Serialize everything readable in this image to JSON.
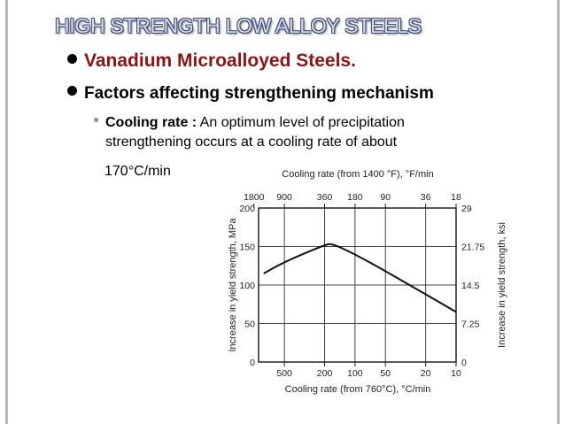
{
  "slide": {
    "title": "HIGH STRENGTH LOW ALLOY STEELS",
    "bullet1": "Vanadium Microalloyed Steels.",
    "bullet2": "Factors affecting strengthening mechanism",
    "sub_label": "Cooling rate :",
    "sub_text_line1": "An optimum level of precipitation",
    "sub_text_line2": "strengthening occurs at a cooling rate of about",
    "sub_text_line3": "170°C/min"
  },
  "chart_data": {
    "type": "line",
    "top_axis_label": "Cooling rate (from 1400 °F), °F/min",
    "bottom_axis_label": "Cooling rate (from 760°C), °C/min",
    "left_axis_label": "Increase in yield strength, MPa",
    "right_axis_label": "Increase in yield strength, ksi",
    "top_ticks": [
      "1800",
      "900",
      "360",
      "180",
      "90",
      "36",
      "18"
    ],
    "bottom_ticks": [
      "500",
      "200",
      "100",
      "50",
      "20",
      "10"
    ],
    "left_ticks": [
      "0",
      "50",
      "100",
      "150",
      "200"
    ],
    "right_ticks": [
      "0",
      "7.25",
      "14.5",
      "21.75",
      "29"
    ],
    "ylim": [
      0,
      200
    ],
    "series": [
      {
        "x": [
          800,
          500,
          200,
          170,
          100,
          50,
          20,
          10
        ],
        "y": [
          115,
          130,
          152,
          154,
          140,
          118,
          88,
          65
        ]
      }
    ]
  }
}
